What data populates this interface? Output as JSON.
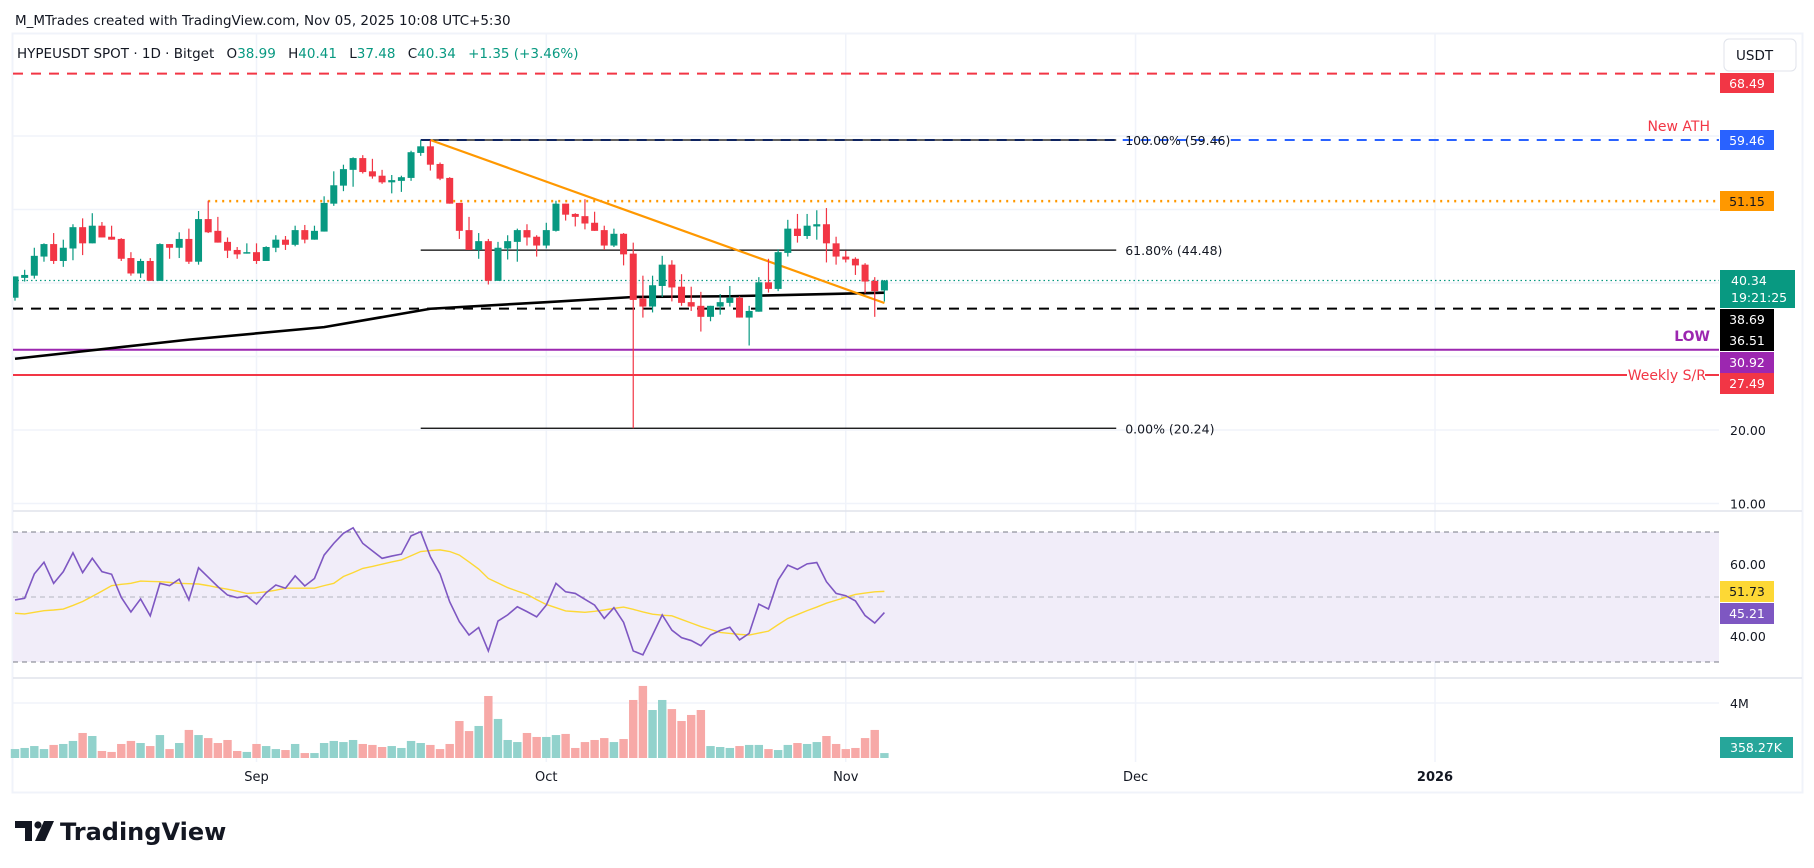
{
  "header": {
    "attribution": "M_MTrades created with TradingView.com, Nov 05, 2025 10:08 UTC+5:30"
  },
  "legend": {
    "symbol": "HYPEUSDT SPOT · 1D · Bitget",
    "open_label": "O",
    "open": "38.99",
    "high_label": "H",
    "high": "40.41",
    "low_label": "L",
    "low": "37.48",
    "close_label": "C",
    "close": "40.34",
    "change": "+1.35 (+3.46%)"
  },
  "currency_button": "USDT",
  "logo_text": "TradingView",
  "colors": {
    "up": "#089981",
    "down": "#f23645",
    "vol_up": "#92d2cc",
    "vol_down": "#f7a9a7",
    "ma200": "#000000",
    "trendline": "#ff9800",
    "ath": "#2962ff",
    "resistance": "#ff9800",
    "low": "#9c27b0",
    "weekly": "#f23645",
    "rsi": "#7e57c2",
    "rsi_ma": "#fdd835",
    "rsi_band": "#f1edf9"
  },
  "chart_data": {
    "type": "candlestick",
    "price_axis": {
      "ticks": [
        "60.00",
        "50.00",
        "40.00",
        "30.00",
        "20.00",
        "10.00"
      ],
      "tick_values": [
        60,
        50,
        40,
        30,
        20,
        10
      ],
      "currency": "USDT"
    },
    "time_axis": {
      "ticks": [
        {
          "label": "Sep",
          "date": "2025-09-01",
          "bold": false
        },
        {
          "label": "Oct",
          "date": "2025-10-01",
          "bold": false
        },
        {
          "label": "Nov",
          "date": "2025-11-01",
          "bold": false
        },
        {
          "label": "Dec",
          "date": "2025-12-01",
          "bold": false
        },
        {
          "label": "2026",
          "date": "2026-01-01",
          "bold": true
        }
      ]
    },
    "grid": true,
    "columns": [
      "date",
      "open",
      "high",
      "low",
      "close",
      "volume_M",
      "rsi",
      "rsi_ma"
    ],
    "candles": [
      [
        "2025-08-07",
        38.0,
        40.9,
        37.6,
        40.9,
        0.65,
        49.1,
        45.0
      ],
      [
        "2025-08-08",
        40.7,
        41.8,
        40.2,
        41.1,
        0.73,
        49.6,
        44.8
      ],
      [
        "2025-08-09",
        41.0,
        44.8,
        40.6,
        43.7,
        0.87,
        57.1,
        45.3
      ],
      [
        "2025-08-10",
        43.6,
        45.4,
        42.9,
        45.3,
        0.65,
        60.7,
        45.8
      ],
      [
        "2025-08-11",
        45.3,
        46.8,
        42.6,
        43.0,
        0.95,
        54.2,
        46.0
      ],
      [
        "2025-08-12",
        43.0,
        45.9,
        42.2,
        44.8,
        1.02,
        57.8,
        46.3
      ],
      [
        "2025-08-13",
        44.7,
        48.0,
        43.1,
        47.6,
        1.24,
        63.6,
        47.4
      ],
      [
        "2025-08-14",
        47.6,
        48.8,
        43.8,
        45.4,
        1.82,
        57.5,
        48.6
      ],
      [
        "2025-08-15",
        45.4,
        49.5,
        45.4,
        47.8,
        1.6,
        61.9,
        50.2
      ],
      [
        "2025-08-16",
        47.8,
        48.3,
        46.2,
        46.2,
        0.51,
        57.8,
        51.8
      ],
      [
        "2025-08-17",
        46.3,
        47.8,
        45.9,
        45.9,
        0.44,
        57.0,
        53.5
      ],
      [
        "2025-08-18",
        46.0,
        46.1,
        43.0,
        43.3,
        1.02,
        49.9,
        53.9
      ],
      [
        "2025-08-19",
        43.4,
        44.2,
        41.0,
        41.3,
        1.24,
        45.4,
        54.2
      ],
      [
        "2025-08-20",
        41.3,
        43.3,
        40.7,
        43.0,
        1.09,
        49.4,
        54.9
      ],
      [
        "2025-08-21",
        43.0,
        43.4,
        40.3,
        40.3,
        0.87,
        44.2,
        54.8
      ],
      [
        "2025-08-22",
        40.3,
        45.4,
        40.3,
        45.3,
        1.67,
        54.2,
        54.7
      ],
      [
        "2025-08-23",
        45.3,
        45.3,
        43.3,
        44.8,
        0.65,
        53.5,
        54.5
      ],
      [
        "2025-08-24",
        44.8,
        46.9,
        43.4,
        46.0,
        1.09,
        55.5,
        54.2
      ],
      [
        "2025-08-25",
        46.0,
        47.4,
        42.6,
        42.9,
        2.04,
        49.1,
        54.1
      ],
      [
        "2025-08-26",
        42.9,
        49.8,
        42.5,
        48.7,
        1.67,
        59.0,
        54.0
      ],
      [
        "2025-08-27",
        48.7,
        51.2,
        46.8,
        46.9,
        1.45,
        56.1,
        53.5
      ],
      [
        "2025-08-28",
        47.1,
        49.0,
        45.5,
        45.5,
        1.09,
        53.2,
        52.9
      ],
      [
        "2025-08-29",
        45.6,
        46.2,
        43.4,
        44.4,
        1.31,
        50.6,
        52.4
      ],
      [
        "2025-08-30",
        44.5,
        44.9,
        43.3,
        43.9,
        0.51,
        49.8,
        51.8
      ],
      [
        "2025-08-31",
        44.0,
        45.4,
        44.0,
        44.2,
        0.44,
        50.3,
        51.1
      ],
      [
        "2025-09-01",
        44.2,
        45.4,
        42.6,
        43.0,
        1.02,
        47.8,
        51.3
      ],
      [
        "2025-09-02",
        43.0,
        45.0,
        43.0,
        44.9,
        0.87,
        51.3,
        51.6
      ],
      [
        "2025-09-03",
        44.8,
        46.5,
        44.2,
        45.9,
        0.65,
        53.7,
        52.1
      ],
      [
        "2025-09-04",
        45.9,
        46.4,
        44.5,
        45.2,
        0.58,
        52.7,
        52.7
      ],
      [
        "2025-09-05",
        45.2,
        47.8,
        45.0,
        47.2,
        1.02,
        56.5,
        52.7
      ],
      [
        "2025-09-06",
        47.2,
        47.9,
        45.4,
        45.9,
        0.36,
        53.4,
        52.7
      ],
      [
        "2025-09-07",
        45.9,
        47.8,
        45.9,
        47.1,
        0.36,
        55.7,
        52.7
      ],
      [
        "2025-09-08",
        47.0,
        51.8,
        47.0,
        50.9,
        1.09,
        62.9,
        53.5
      ],
      [
        "2025-09-09",
        50.8,
        55.2,
        50.5,
        53.3,
        1.24,
        66.5,
        54.2
      ],
      [
        "2025-09-10",
        53.25,
        56.1,
        52.5,
        55.5,
        1.16,
        69.6,
        56.3
      ],
      [
        "2025-09-11",
        55.4,
        57.1,
        53.1,
        57.0,
        1.31,
        71.3,
        57.5
      ],
      [
        "2025-09-12",
        57.0,
        57.4,
        54.9,
        55.1,
        1.02,
        66.5,
        58.8
      ],
      [
        "2025-09-13",
        55.2,
        56.9,
        54.2,
        54.5,
        0.95,
        64.2,
        59.4
      ],
      [
        "2025-09-14",
        54.6,
        55.4,
        53.5,
        53.7,
        0.8,
        61.9,
        60.1
      ],
      [
        "2025-09-15",
        53.7,
        54.7,
        52.2,
        54.0,
        0.87,
        62.6,
        60.8
      ],
      [
        "2025-09-16",
        53.9,
        54.6,
        52.4,
        54.4,
        0.73,
        63.2,
        61.4
      ],
      [
        "2025-09-17",
        54.3,
        58.0,
        53.9,
        57.8,
        1.24,
        68.8,
        62.7
      ],
      [
        "2025-09-18",
        57.7,
        59.46,
        57.3,
        58.6,
        1.09,
        70.1,
        64.0
      ],
      [
        "2025-09-19",
        58.6,
        59.46,
        55.3,
        56.1,
        0.95,
        62.4,
        64.3
      ],
      [
        "2025-09-20",
        56.2,
        56.4,
        54.0,
        54.2,
        0.65,
        57.1,
        64.5
      ],
      [
        "2025-09-21",
        54.3,
        54.4,
        50.8,
        50.8,
        1.02,
        48.5,
        64.0
      ],
      [
        "2025-09-22",
        50.9,
        50.9,
        46.0,
        47.1,
        2.69,
        42.4,
        62.9
      ],
      [
        "2025-09-23",
        47.2,
        49.0,
        44.5,
        44.5,
        1.96,
        38.3,
        60.8
      ],
      [
        "2025-09-24",
        44.5,
        46.8,
        43.3,
        45.7,
        2.33,
        40.6,
        58.6
      ],
      [
        "2025-09-25",
        45.7,
        46.0,
        39.8,
        40.3,
        4.51,
        33.4,
        55.7
      ],
      [
        "2025-09-26",
        40.3,
        45.6,
        40.3,
        44.8,
        2.84,
        42.6,
        54.3
      ],
      [
        "2025-09-27",
        44.7,
        46.5,
        43.2,
        45.7,
        1.31,
        44.5,
        52.9
      ],
      [
        "2025-09-28",
        45.6,
        47.4,
        42.9,
        47.2,
        1.16,
        47.0,
        51.8
      ],
      [
        "2025-09-29",
        47.2,
        48.0,
        45.1,
        46.2,
        1.82,
        45.5,
        50.8
      ],
      [
        "2025-09-30",
        46.3,
        46.5,
        43.6,
        45.1,
        1.53,
        43.9,
        49.2
      ],
      [
        "2025-10-01",
        45.1,
        48.2,
        44.7,
        47.2,
        1.53,
        47.5,
        47.7
      ],
      [
        "2025-10-02",
        47.1,
        51.2,
        47.0,
        50.8,
        1.67,
        54.2,
        46.7
      ],
      [
        "2025-10-03",
        50.8,
        50.8,
        48.5,
        49.3,
        1.75,
        51.6,
        45.7
      ],
      [
        "2025-10-04",
        49.4,
        49.5,
        47.7,
        49.0,
        0.73,
        51.1,
        45.5
      ],
      [
        "2025-10-05",
        49.1,
        51.4,
        47.3,
        48.1,
        1.16,
        49.3,
        45.3
      ],
      [
        "2025-10-06",
        48.2,
        49.7,
        47.1,
        47.1,
        1.31,
        47.5,
        45.6
      ],
      [
        "2025-10-07",
        47.2,
        47.8,
        44.5,
        45.1,
        1.45,
        43.4,
        46.0
      ],
      [
        "2025-10-08",
        45.1,
        47.4,
        44.9,
        46.7,
        1.16,
        46.7,
        46.5
      ],
      [
        "2025-10-09",
        46.7,
        46.8,
        42.4,
        43.9,
        1.38,
        42.2,
        46.9
      ],
      [
        "2025-10-10",
        44.0,
        45.5,
        20.24,
        37.7,
        4.22,
        33.4,
        46.2
      ],
      [
        "2025-10-11",
        37.9,
        41.0,
        35.3,
        36.8,
        5.24,
        32.2,
        45.4
      ],
      [
        "2025-10-12",
        36.8,
        41.0,
        36.0,
        39.7,
        3.49,
        38.3,
        44.7
      ],
      [
        "2025-10-13",
        39.6,
        43.7,
        38.1,
        42.5,
        4.22,
        44.5,
        44.4
      ],
      [
        "2025-10-14",
        42.5,
        43.1,
        37.5,
        39.4,
        3.56,
        39.8,
        44.2
      ],
      [
        "2025-10-15",
        39.5,
        41.2,
        36.9,
        37.3,
        2.69,
        37.5,
        43.1
      ],
      [
        "2025-10-16",
        37.4,
        39.5,
        36.2,
        36.8,
        3.13,
        36.6,
        42.0
      ],
      [
        "2025-10-17",
        36.9,
        38.8,
        33.4,
        35.4,
        3.49,
        35.0,
        40.9
      ],
      [
        "2025-10-18",
        35.4,
        36.9,
        34.8,
        36.9,
        0.87,
        38.3,
        40.0
      ],
      [
        "2025-10-19",
        36.8,
        38.5,
        35.7,
        37.4,
        0.8,
        39.7,
        39.1
      ],
      [
        "2025-10-20",
        37.3,
        39.6,
        36.8,
        38.0,
        0.73,
        40.7,
        38.8
      ],
      [
        "2025-10-21",
        38.0,
        38.2,
        35.3,
        35.3,
        0.87,
        36.8,
        38.5
      ],
      [
        "2025-10-22",
        35.3,
        36.9,
        31.5,
        36.2,
        0.95,
        38.8,
        38.3
      ],
      [
        "2025-10-23",
        36.1,
        40.8,
        36.1,
        40.1,
        0.95,
        47.8,
        38.9
      ],
      [
        "2025-10-24",
        40.1,
        43.3,
        38.7,
        39.2,
        0.65,
        46.3,
        39.5
      ],
      [
        "2025-10-25",
        39.2,
        44.6,
        38.9,
        44.2,
        0.58,
        55.2,
        41.5
      ],
      [
        "2025-10-26",
        44.1,
        48.6,
        43.6,
        47.4,
        0.95,
        59.8,
        43.4
      ],
      [
        "2025-10-27",
        47.4,
        49.4,
        45.5,
        46.4,
        1.09,
        58.5,
        44.6
      ],
      [
        "2025-10-28",
        46.4,
        49.4,
        46.0,
        47.8,
        1.02,
        60.2,
        45.8
      ],
      [
        "2025-10-29",
        47.7,
        49.9,
        45.9,
        48.0,
        1.16,
        60.6,
        46.9
      ],
      [
        "2025-10-30",
        48.0,
        50.2,
        42.8,
        45.4,
        1.6,
        54.7,
        48.1
      ],
      [
        "2025-10-31",
        45.4,
        46.3,
        42.5,
        43.6,
        1.02,
        51.1,
        49.0
      ],
      [
        "2025-11-01",
        43.6,
        44.4,
        42.8,
        43.2,
        0.65,
        50.4,
        49.9
      ],
      [
        "2025-11-02",
        43.3,
        43.5,
        41.1,
        42.4,
        0.73,
        48.8,
        50.8
      ],
      [
        "2025-11-03",
        42.5,
        42.7,
        38.6,
        40.2,
        1.45,
        44.3,
        51.2
      ],
      [
        "2025-11-04",
        40.3,
        40.8,
        35.4,
        38.9,
        2.04,
        42.0,
        51.6
      ],
      [
        "2025-11-05",
        38.99,
        40.41,
        37.48,
        40.34,
        0.35827,
        45.21,
        51.73
      ]
    ],
    "ma200": [
      [
        "2025-08-07",
        29.7
      ],
      [
        "2025-08-25",
        32.3
      ],
      [
        "2025-09-08",
        34.0
      ],
      [
        "2025-09-19",
        36.5
      ],
      [
        "2025-10-01",
        37.4
      ],
      [
        "2025-10-10",
        38.1
      ],
      [
        "2025-10-20",
        38.2
      ],
      [
        "2025-10-30",
        38.5
      ],
      [
        "2025-11-05",
        38.69
      ]
    ],
    "trendline": {
      "from": [
        "2025-09-19",
        59.46
      ],
      "to": [
        "2025-11-05",
        37.28
      ]
    },
    "fib": {
      "from_date": "2025-09-18",
      "to_date": "2025-11-29",
      "levels": [
        {
          "value": 59.46,
          "label": "100.00% (59.46)"
        },
        {
          "value": 44.48,
          "label": "61.80% (44.48)"
        },
        {
          "value": 20.24,
          "label": "0.00% (20.24)"
        }
      ]
    },
    "horizontal_lines": [
      {
        "name": "top-resistance",
        "value": 68.49,
        "label": "68.49",
        "style": "dashed",
        "color": "#f23645",
        "text_color": "#ffffff"
      },
      {
        "name": "ath",
        "value": 59.46,
        "label": "59.46",
        "style": "dashed",
        "color": "#2962ff",
        "text_color": "#ffffff",
        "from_date": "2025-09-18",
        "annotation": "New ATH",
        "annotation_color": "#f23645"
      },
      {
        "name": "resistance",
        "value": 51.15,
        "label": "51.15",
        "style": "dotted",
        "color": "#ff9800",
        "text_color": "#131722",
        "from_date": "2025-08-27"
      },
      {
        "name": "support",
        "value": 36.51,
        "label": "36.51",
        "style": "dashed",
        "color": "#000000",
        "text_color": "#ffffff"
      },
      {
        "name": "low",
        "value": 30.92,
        "label": "30.92",
        "style": "solid",
        "color": "#9c27b0",
        "text_color": "#ffffff",
        "annotation": "LOW",
        "annotation_color": "#9c27b0"
      },
      {
        "name": "weekly-sr",
        "value": 27.49,
        "label": "27.49",
        "style": "solid",
        "color": "#f23645",
        "text_color": "#ffffff",
        "annotation": "Weekly S/R",
        "annotation_color": "#f23645"
      }
    ],
    "last_price": {
      "value": 40.34,
      "label": "40.34",
      "countdown": "19:21:25",
      "color": "#089981"
    },
    "ma200_label": {
      "value": 38.69,
      "label": "38.69"
    },
    "rsi_panel": {
      "ticks": [
        "60.00",
        "40.00"
      ],
      "tick_values": [
        60,
        40
      ],
      "band": [
        30,
        70
      ],
      "mid": 50,
      "rsi_label": "45.21",
      "rsi_ma_label": "51.73"
    },
    "volume_panel": {
      "ticks": [
        "4M"
      ],
      "tick_values": [
        4
      ],
      "last_label": "358.27K"
    }
  }
}
